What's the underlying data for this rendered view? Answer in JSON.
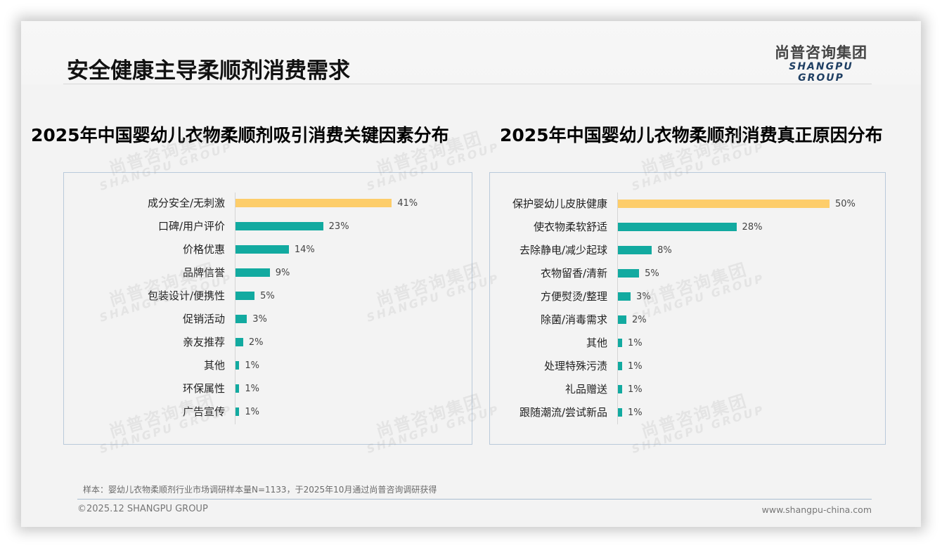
{
  "header": {
    "title": "安全健康主导柔顺剂消费需求",
    "logo_cn": "尚普咨询集团",
    "logo_en": "SHANGPU GROUP"
  },
  "watermark": {
    "cn": "尚普咨询集团",
    "en": "SHANGPU GROUP"
  },
  "colors": {
    "highlight": "#fdcd6a",
    "bar": "#12aaa0",
    "frame": "#b9c9da"
  },
  "chart_data": [
    {
      "type": "bar",
      "orientation": "horizontal",
      "title": "2025年中国婴幼儿衣物柔顺剂吸引消费关键因素分布",
      "categories": [
        "成分安全/无刺激",
        "口碑/用户评价",
        "价格优惠",
        "品牌信誉",
        "包装设计/便携性",
        "促销活动",
        "亲友推荐",
        "其他",
        "环保属性",
        "广告宣传"
      ],
      "values": [
        41,
        23,
        14,
        9,
        5,
        3,
        2,
        1,
        1,
        1
      ],
      "value_labels": [
        "41%",
        "23%",
        "14%",
        "9%",
        "5%",
        "3%",
        "2%",
        "1%",
        "1%",
        "1%"
      ],
      "unit": "%",
      "highlight_index": 0,
      "xlabel": "",
      "ylabel": "",
      "grid": false,
      "legend": "none"
    },
    {
      "type": "bar",
      "orientation": "horizontal",
      "title": "2025年中国婴幼儿衣物柔顺剂消费真正原因分布",
      "categories": [
        "保护婴幼儿皮肤健康",
        "使衣物柔软舒适",
        "去除静电/减少起球",
        "衣物留香/清新",
        "方便熨烫/整理",
        "除菌/消毒需求",
        "其他",
        "处理特殊污渍",
        "礼品赠送",
        "跟随潮流/尝试新品"
      ],
      "values": [
        50,
        28,
        8,
        5,
        3,
        2,
        1,
        1,
        1,
        1
      ],
      "value_labels": [
        "50%",
        "28%",
        "8%",
        "5%",
        "3%",
        "2%",
        "1%",
        "1%",
        "1%",
        "1%"
      ],
      "unit": "%",
      "highlight_index": 0,
      "xlabel": "",
      "ylabel": "",
      "grid": false,
      "legend": "none"
    }
  ],
  "footer": {
    "note": "样本：婴幼儿衣物柔顺剂行业市场调研样本量N=1133，于2025年10月通过尚普咨询调研获得",
    "copyright": "©2025.12 SHANGPU GROUP",
    "website": "www.shangpu-china.com"
  }
}
